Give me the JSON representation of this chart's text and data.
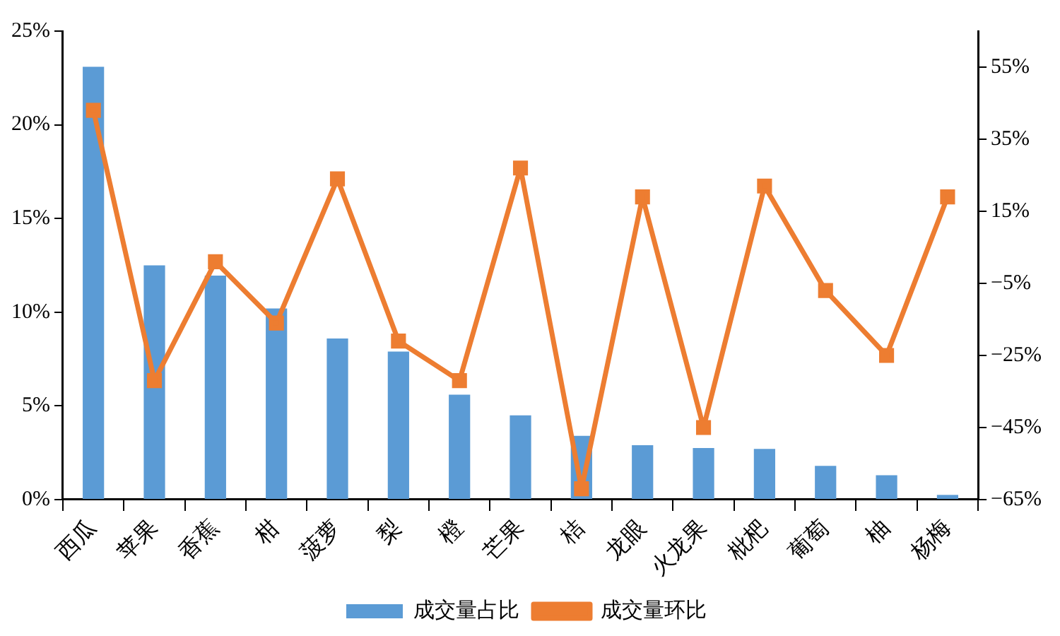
{
  "chart_data": {
    "type": "bar",
    "categories": [
      "西瓜",
      "苹果",
      "香蕉",
      "柑",
      "菠萝",
      "梨",
      "橙",
      "芒果",
      "桔",
      "龙眼",
      "火龙果",
      "枇杷",
      "葡萄",
      "柚",
      "杨梅"
    ],
    "series": [
      {
        "name": "成交量占比",
        "color": "#5b9bd5",
        "values": [
          23.1,
          12.5,
          11.95,
          10.2,
          8.6,
          7.9,
          5.6,
          4.5,
          3.4,
          2.9,
          2.75,
          2.7,
          1.8,
          1.3,
          0.25
        ]
      },
      {
        "name": "成交量环比",
        "type": "line",
        "axis": "y2",
        "color": "#ed7d31",
        "marker": "square",
        "values": [
          43,
          -32,
          1,
          -16,
          24,
          -21,
          -32,
          27,
          -62,
          19,
          -45,
          22,
          -7,
          -25,
          19
        ]
      }
    ],
    "ylim": [
      0,
      25
    ],
    "yticks": [
      {
        "value": 0,
        "label": "0%"
      },
      {
        "value": 5,
        "label": "5%"
      },
      {
        "value": 10,
        "label": "10%"
      },
      {
        "value": 15,
        "label": "15%"
      },
      {
        "value": 20,
        "label": "20%"
      },
      {
        "value": 25,
        "label": "25%"
      }
    ],
    "y2lim": [
      -65,
      65
    ],
    "y2ticks": [
      {
        "value": -65,
        "label": "−65%"
      },
      {
        "value": -45,
        "label": "−45%"
      },
      {
        "value": -25,
        "label": "−25%"
      },
      {
        "value": -5,
        "label": "−5%"
      },
      {
        "value": 15,
        "label": "15%"
      },
      {
        "value": 35,
        "label": "35%"
      },
      {
        "value": 55,
        "label": "55%"
      }
    ],
    "grid": false,
    "legend": "bottom"
  }
}
